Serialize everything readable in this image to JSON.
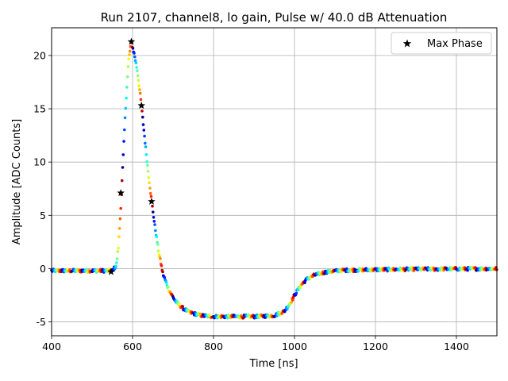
{
  "chart_data": {
    "type": "scatter",
    "title": "Run 2107, channel8, lo gain, Pulse w/ 40.0 dB Attenuation",
    "xlabel": "Time [ns]",
    "ylabel": "Amplitude [ADC Counts]",
    "xlim": [
      400,
      1500
    ],
    "ylim": [
      -6.3,
      22.6
    ],
    "xticks": [
      400,
      600,
      800,
      1000,
      1200,
      1400
    ],
    "yticks": [
      -5,
      0,
      5,
      10,
      15,
      20
    ],
    "grid": true,
    "legend": {
      "position": "top-right",
      "entries": [
        "Max Phase"
      ]
    },
    "colormap": "jet",
    "pulse_shape": [
      [
        400,
        -0.2
      ],
      [
        550,
        -0.2
      ],
      [
        560,
        0.3
      ],
      [
        565,
        2.0
      ],
      [
        570,
        5.0
      ],
      [
        575,
        9.0
      ],
      [
        580,
        13.0
      ],
      [
        585,
        16.5
      ],
      [
        590,
        19.5
      ],
      [
        597,
        21.3
      ],
      [
        605,
        20.0
      ],
      [
        612,
        18.5
      ],
      [
        620,
        16.0
      ],
      [
        628,
        13.0
      ],
      [
        636,
        10.0
      ],
      [
        645,
        7.0
      ],
      [
        655,
        4.0
      ],
      [
        665,
        1.5
      ],
      [
        675,
        -0.5
      ],
      [
        690,
        -2.0
      ],
      [
        705,
        -3.0
      ],
      [
        720,
        -3.6
      ],
      [
        740,
        -4.1
      ],
      [
        770,
        -4.4
      ],
      [
        800,
        -4.5
      ],
      [
        850,
        -4.5
      ],
      [
        900,
        -4.5
      ],
      [
        950,
        -4.4
      ],
      [
        975,
        -4.0
      ],
      [
        990,
        -3.2
      ],
      [
        1000,
        -2.5
      ],
      [
        1015,
        -1.6
      ],
      [
        1030,
        -1.0
      ],
      [
        1050,
        -0.6
      ],
      [
        1080,
        -0.3
      ],
      [
        1120,
        -0.15
      ],
      [
        1200,
        -0.1
      ],
      [
        1300,
        -0.05
      ],
      [
        1500,
        0.0
      ]
    ],
    "max_phase_points": [
      {
        "x": 547,
        "y": -0.3
      },
      {
        "x": 571,
        "y": 7.1
      },
      {
        "x": 597,
        "y": 21.3
      },
      {
        "x": 622,
        "y": 15.3
      },
      {
        "x": 647,
        "y": 6.3
      }
    ],
    "scatter_spread": 0.15,
    "scatter_step": 1.5
  }
}
